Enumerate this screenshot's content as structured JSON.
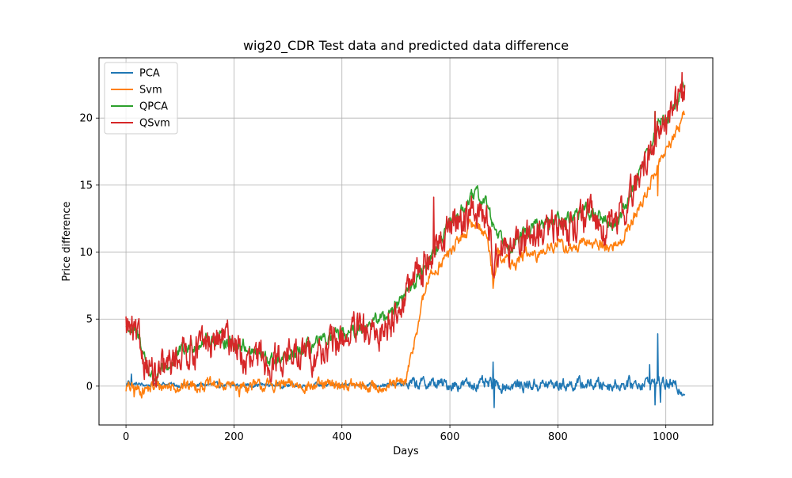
{
  "chart_data": {
    "type": "line",
    "title": "wig20_CDR Test data and predicted data difference",
    "xlabel": "Days",
    "ylabel": "Price difference",
    "xlim": [
      -50,
      1087
    ],
    "ylim": [
      -2.9,
      24.5
    ],
    "xticks": [
      0,
      200,
      400,
      600,
      800,
      1000
    ],
    "yticks": [
      0,
      5,
      10,
      15,
      20
    ],
    "grid": true,
    "legend_position": "top-left",
    "n_points": 1036,
    "series": [
      {
        "name": "PCA",
        "color": "#1f77b4",
        "keypoints": [
          [
            0,
            0.0
          ],
          [
            5,
            0.4
          ],
          [
            10,
            0.1
          ],
          [
            20,
            0.15
          ],
          [
            40,
            0.05
          ],
          [
            60,
            0.2
          ],
          [
            100,
            0.05
          ],
          [
            150,
            0.1
          ],
          [
            200,
            0.05
          ],
          [
            250,
            0.1
          ],
          [
            300,
            0.05
          ],
          [
            350,
            0.1
          ],
          [
            400,
            0.05
          ],
          [
            450,
            0.1
          ],
          [
            500,
            0.1
          ],
          [
            520,
            0.15
          ],
          [
            560,
            0.2
          ],
          [
            600,
            0.1
          ],
          [
            650,
            0.15
          ],
          [
            700,
            0.0
          ],
          [
            750,
            0.1
          ],
          [
            800,
            0.1
          ],
          [
            850,
            0.15
          ],
          [
            900,
            0.1
          ],
          [
            950,
            0.2
          ],
          [
            980,
            0.3
          ],
          [
            1000,
            0.2
          ],
          [
            1035,
            -0.3
          ]
        ],
        "noise": 0.12,
        "noise_after_x": 520,
        "noise_late": 0.35,
        "spikes": [
          [
            10,
            0.9
          ],
          [
            680,
            1.8
          ],
          [
            682,
            -1.6
          ],
          [
            970,
            1.6
          ],
          [
            985,
            3.9
          ],
          [
            980,
            -1.4
          ],
          [
            990,
            -1.2
          ]
        ]
      },
      {
        "name": "Svm",
        "color": "#ff7f0e",
        "keypoints": [
          [
            0,
            -0.1
          ],
          [
            30,
            -0.3
          ],
          [
            60,
            0.0
          ],
          [
            100,
            0.0
          ],
          [
            150,
            0.1
          ],
          [
            200,
            0.0
          ],
          [
            250,
            0.0
          ],
          [
            300,
            0.1
          ],
          [
            350,
            0.0
          ],
          [
            400,
            0.1
          ],
          [
            450,
            -0.1
          ],
          [
            500,
            0.1
          ],
          [
            518,
            0.3
          ],
          [
            525,
            1.5
          ],
          [
            535,
            3.5
          ],
          [
            545,
            5.5
          ],
          [
            560,
            8.0
          ],
          [
            580,
            9.0
          ],
          [
            600,
            10.0
          ],
          [
            620,
            11.0
          ],
          [
            640,
            12.0
          ],
          [
            650,
            12.2
          ],
          [
            670,
            11.0
          ],
          [
            680,
            8.0
          ],
          [
            690,
            10.0
          ],
          [
            700,
            9.5
          ],
          [
            720,
            9.0
          ],
          [
            740,
            10.0
          ],
          [
            760,
            9.5
          ],
          [
            780,
            10.5
          ],
          [
            800,
            10.5
          ],
          [
            830,
            10.2
          ],
          [
            860,
            10.8
          ],
          [
            880,
            10.5
          ],
          [
            900,
            10.3
          ],
          [
            920,
            11.0
          ],
          [
            940,
            12.5
          ],
          [
            960,
            14.0
          ],
          [
            975,
            15.5
          ],
          [
            985,
            16.5
          ],
          [
            1000,
            17.5
          ],
          [
            1020,
            19.0
          ],
          [
            1035,
            20.5
          ]
        ],
        "noise": 0.35,
        "spikes": [
          [
            15,
            -0.8
          ],
          [
            210,
            -0.8
          ],
          [
            680,
            7.3
          ],
          [
            985,
            14.2
          ]
        ]
      },
      {
        "name": "QPCA",
        "color": "#2ca02c",
        "keypoints": [
          [
            0,
            4.5
          ],
          [
            15,
            4.0
          ],
          [
            25,
            3.5
          ],
          [
            40,
            1.5
          ],
          [
            50,
            0.5
          ],
          [
            60,
            0.8
          ],
          [
            80,
            1.5
          ],
          [
            100,
            2.5
          ],
          [
            120,
            3.0
          ],
          [
            150,
            3.5
          ],
          [
            180,
            3.5
          ],
          [
            200,
            3.2
          ],
          [
            220,
            3.0
          ],
          [
            240,
            2.5
          ],
          [
            260,
            2.0
          ],
          [
            280,
            1.8
          ],
          [
            300,
            2.0
          ],
          [
            320,
            2.5
          ],
          [
            340,
            3.0
          ],
          [
            360,
            3.2
          ],
          [
            380,
            3.5
          ],
          [
            400,
            3.8
          ],
          [
            420,
            4.0
          ],
          [
            440,
            4.5
          ],
          [
            460,
            4.8
          ],
          [
            480,
            5.3
          ],
          [
            500,
            6.0
          ],
          [
            520,
            7.0
          ],
          [
            540,
            8.0
          ],
          [
            560,
            9.5
          ],
          [
            580,
            10.5
          ],
          [
            600,
            12.0
          ],
          [
            620,
            13.0
          ],
          [
            640,
            14.0
          ],
          [
            650,
            14.3
          ],
          [
            670,
            13.5
          ],
          [
            680,
            12.0
          ],
          [
            700,
            11.0
          ],
          [
            720,
            10.5
          ],
          [
            740,
            11.5
          ],
          [
            760,
            12.0
          ],
          [
            780,
            12.0
          ],
          [
            800,
            12.5
          ],
          [
            820,
            12.5
          ],
          [
            840,
            13.0
          ],
          [
            860,
            13.0
          ],
          [
            880,
            12.5
          ],
          [
            900,
            12.0
          ],
          [
            920,
            13.0
          ],
          [
            940,
            15.0
          ],
          [
            960,
            17.0
          ],
          [
            975,
            18.0
          ],
          [
            985,
            19.5
          ],
          [
            1000,
            20.0
          ],
          [
            1020,
            21.0
          ],
          [
            1035,
            22.8
          ]
        ],
        "noise": 0.4,
        "spikes": [
          [
            980,
            20.5
          ]
        ]
      },
      {
        "name": "QSvm",
        "color": "#d62728",
        "keypoints": [
          [
            0,
            4.5
          ],
          [
            15,
            3.8
          ],
          [
            25,
            3.0
          ],
          [
            35,
            2.0
          ],
          [
            45,
            1.5
          ],
          [
            55,
            0.2
          ],
          [
            65,
            1.0
          ],
          [
            80,
            1.5
          ],
          [
            100,
            2.5
          ],
          [
            120,
            2.8
          ],
          [
            150,
            3.0
          ],
          [
            180,
            3.5
          ],
          [
            200,
            3.5
          ],
          [
            215,
            2.0
          ],
          [
            230,
            1.5
          ],
          [
            250,
            2.0
          ],
          [
            280,
            2.0
          ],
          [
            300,
            2.5
          ],
          [
            320,
            2.0
          ],
          [
            340,
            2.5
          ],
          [
            360,
            2.5
          ],
          [
            380,
            3.0
          ],
          [
            400,
            3.5
          ],
          [
            420,
            4.0
          ],
          [
            440,
            4.0
          ],
          [
            460,
            3.5
          ],
          [
            480,
            4.5
          ],
          [
            500,
            5.5
          ],
          [
            520,
            7.0
          ],
          [
            540,
            8.5
          ],
          [
            560,
            9.5
          ],
          [
            580,
            10.5
          ],
          [
            600,
            12.0
          ],
          [
            620,
            12.5
          ],
          [
            640,
            13.0
          ],
          [
            660,
            13.0
          ],
          [
            670,
            12.0
          ],
          [
            680,
            10.0
          ],
          [
            700,
            10.5
          ],
          [
            720,
            10.0
          ],
          [
            740,
            11.0
          ],
          [
            760,
            11.5
          ],
          [
            780,
            11.5
          ],
          [
            800,
            12.0
          ],
          [
            820,
            12.0
          ],
          [
            840,
            12.5
          ],
          [
            860,
            12.5
          ],
          [
            880,
            12.0
          ],
          [
            900,
            11.8
          ],
          [
            920,
            13.0
          ],
          [
            940,
            14.5
          ],
          [
            960,
            16.5
          ],
          [
            975,
            18.0
          ],
          [
            985,
            19.0
          ],
          [
            1000,
            19.5
          ],
          [
            1020,
            21.5
          ],
          [
            1035,
            22.5
          ]
        ],
        "noise": 1.0,
        "spikes": [
          [
            570,
            14.1
          ],
          [
            980,
            20.5
          ],
          [
            1030,
            23.4
          ]
        ]
      }
    ]
  }
}
